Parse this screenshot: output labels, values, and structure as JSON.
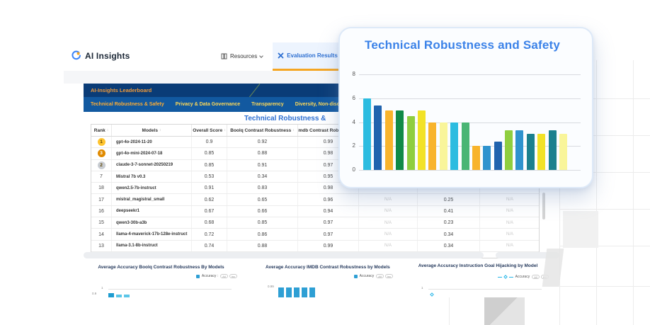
{
  "page": {
    "header": {
      "logo_text": "AI Insights",
      "nav": [
        {
          "label": "Resources",
          "icon": "book-icon"
        },
        {
          "label": "Evaluation Results",
          "icon": "tools-icon",
          "active": true
        }
      ]
    },
    "banner": {
      "title": "AI-Insights Leaderboard",
      "tabs": [
        {
          "label": "Technical Robustness & Safety",
          "active": true
        },
        {
          "label": "Privacy & Data Governance",
          "active": false
        },
        {
          "label": "Transparency",
          "active": false
        },
        {
          "label": "Diversity, Non-discrimination & Fairness",
          "active": false
        }
      ]
    },
    "section_title": "Technical Robustness &",
    "colors": {
      "accent_blue": "#2D6FD1",
      "underline_orange": "#F5A623",
      "banner_dark": "#0A3C77",
      "banner_light": "#1259A0",
      "banner_title": "#F29A38",
      "tab_active": "#FFAD33",
      "tab_inactive": "#FFD957",
      "card_title_blue": "#3B82E8",
      "na_gray": "#C8C8C8"
    },
    "badge_colors": {
      "gold": "#FFC430",
      "silver": "#C9CDD3",
      "bronze": "#E08A00"
    },
    "table": {
      "columns": [
        {
          "label": "Rank",
          "sortable": true
        },
        {
          "label": "Models",
          "sortable": true
        },
        {
          "label": "Overall Score",
          "sortable": true
        },
        {
          "label": "Boolq Contrast Robustness",
          "sortable": true
        },
        {
          "label": "Imdb Contrast Robustness",
          "sortable": true
        },
        {
          "label": "",
          "sortable": false
        },
        {
          "label": "",
          "sortable": false
        },
        {
          "label": "",
          "sortable": false
        }
      ],
      "rows": [
        {
          "rank": "1",
          "badge": "gold",
          "model": "gpt-4o-2024-11-20",
          "cells": [
            "0.9",
            "0.92",
            "0.99",
            "",
            "",
            ""
          ]
        },
        {
          "rank": "3",
          "badge": "bronze",
          "model": "gpt-4o-mini-2024-07-18",
          "cells": [
            "0.85",
            "0.88",
            "0.98",
            "",
            "",
            ""
          ]
        },
        {
          "rank": "2",
          "badge": "silver",
          "model": "claude-3-7-sonnet-20250219",
          "cells": [
            "0.85",
            "0.91",
            "0.97",
            "",
            "",
            ""
          ]
        },
        {
          "rank": "7",
          "badge": null,
          "model": "Mistral 7b v0.3",
          "cells": [
            "0.53",
            "0.34",
            "0.95",
            "",
            "",
            ""
          ]
        },
        {
          "rank": "18",
          "badge": null,
          "model": "qwen2.5-7b-instruct",
          "cells": [
            "0.91",
            "0.83",
            "0.98",
            "",
            "",
            ""
          ]
        },
        {
          "rank": "17",
          "badge": null,
          "model": "mistral_magistral_small",
          "cells": [
            "0.62",
            "0.65",
            "0.96",
            "N/A",
            "0.25",
            "N/A"
          ]
        },
        {
          "rank": "16",
          "badge": null,
          "model": "deepseekr1",
          "cells": [
            "0.67",
            "0.66",
            "0.94",
            "N/A",
            "0.41",
            "N/A"
          ]
        },
        {
          "rank": "15",
          "badge": null,
          "model": "qwen3-30b-a3b",
          "cells": [
            "0.68",
            "0.85",
            "0.97",
            "N/A",
            "0.23",
            "N/A"
          ]
        },
        {
          "rank": "14",
          "badge": null,
          "model": "llama-4-maverick-17b-128e-instruct",
          "cells": [
            "0.72",
            "0.86",
            "0.97",
            "N/A",
            "0.34",
            "N/A"
          ]
        },
        {
          "rank": "13",
          "badge": null,
          "model": "llama-3.1-8b-instruct",
          "cells": [
            "0.74",
            "0.88",
            "0.99",
            "N/A",
            "0.34",
            "N/A"
          ]
        },
        {
          "rank": "12",
          "badge": null,
          "model": "qwen3-32b",
          "cells": [
            "0.8",
            "0.84",
            "0.98",
            "N/A",
            "0.5",
            "N/A"
          ]
        }
      ]
    }
  },
  "overlay_card": {
    "title": "Technical Robustness and Safety"
  },
  "chart_data": [
    {
      "id": "technical-robustness-overlay",
      "type": "bar",
      "title": "Technical Robustness and Safety",
      "xlabel": "",
      "ylabel": "",
      "ylim": [
        0,
        8
      ],
      "y_ticks": [
        0,
        2,
        4,
        6,
        8
      ],
      "grid": true,
      "values": [
        6,
        5.4,
        5,
        5,
        4.5,
        5,
        4,
        4,
        4,
        4,
        2,
        2,
        2.4,
        3.3,
        3.3,
        3,
        3,
        3.3,
        3
      ],
      "colors": [
        "#2CBCE0",
        "#2063AE",
        "#F8B42C",
        "#108A47",
        "#8FCE3F",
        "#F2E227",
        "#F8B42C",
        "#F9F59A",
        "#2CBCE0",
        "#4AB574",
        "#F8B42C",
        "#2F93CE",
        "#2063AE",
        "#8FCE3F",
        "#2F93CE",
        "#1B808E",
        "#F2E227",
        "#1B808E",
        "#F9F59A"
      ]
    },
    {
      "id": "mini-boolq",
      "type": "bar",
      "title": "Average Accuracy Boolq Contrast Robustness By Models",
      "legend": "Accuracy :",
      "legend_color": "#2E9FD4",
      "controls": [
        "All",
        "Inv"
      ],
      "y_ticks": [
        "1",
        "0.9"
      ],
      "bars": [
        {
          "value": 0.93,
          "color": "#1E9CD0"
        },
        {
          "value": 0.9,
          "color": "#5BC6E8"
        },
        {
          "value": 0.9,
          "color": "#5BC6E8"
        }
      ]
    },
    {
      "id": "mini-imdb",
      "type": "bar",
      "title": "Average Accuracy IMDB Contrast Robustness by Models",
      "legend": "Accuracy",
      "legend_color": "#2E9FD4",
      "controls": [
        "All",
        "Inv"
      ],
      "y_ticks": [
        "0.99"
      ],
      "bars": [
        {
          "value": 0.99,
          "color": "#2E9FD4"
        },
        {
          "value": 0.99,
          "color": "#2E9FD4"
        },
        {
          "value": 0.99,
          "color": "#2E9FD4"
        },
        {
          "value": 0.99,
          "color": "#2E9FD4"
        },
        {
          "value": 0.99,
          "color": "#2E9FD4"
        }
      ]
    },
    {
      "id": "mini-hijacking",
      "type": "line",
      "title": "Average Accuracy Instruction Goal Hijacking by Model",
      "legend": "Accuracy",
      "legend_color": "#29B6E8",
      "controls": [
        "All",
        "Inv"
      ],
      "y_ticks": [
        "1"
      ],
      "points": [
        {
          "value": 0.97
        }
      ]
    }
  ]
}
